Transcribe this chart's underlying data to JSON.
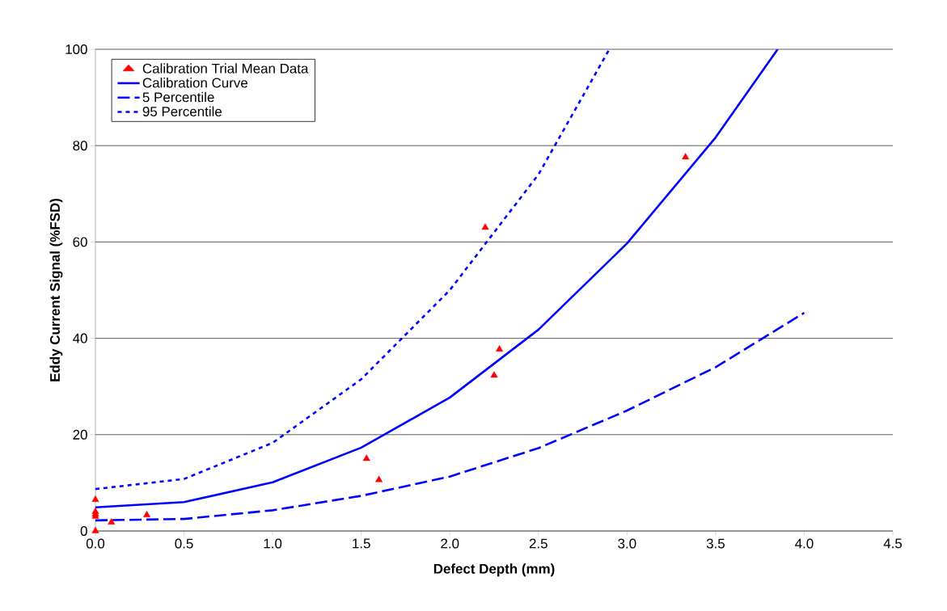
{
  "chart_data": {
    "type": "line",
    "xlabel": "Defect Depth (mm)",
    "ylabel": "Eddy Current Signal (%FSD)",
    "xlim": [
      0,
      4.5
    ],
    "ylim": [
      0,
      100
    ],
    "xticks": [
      {
        "value": 0,
        "label": "0.0"
      },
      {
        "value": 0.5,
        "label": "0.5"
      },
      {
        "value": 1,
        "label": "1.0"
      },
      {
        "value": 1.5,
        "label": "1.5"
      },
      {
        "value": 2,
        "label": "2.0"
      },
      {
        "value": 2.5,
        "label": "2.5"
      },
      {
        "value": 3,
        "label": "3.0"
      },
      {
        "value": 3.5,
        "label": "3.5"
      },
      {
        "value": 4,
        "label": "4.0"
      },
      {
        "value": 4.5,
        "label": "4.5"
      }
    ],
    "yticks": [
      0,
      20,
      40,
      60,
      80,
      100
    ],
    "grid": "y",
    "legend": "top left",
    "series": [
      {
        "name": "Calibration Trial Mean Data",
        "type": "scatter",
        "marker": "triangle",
        "color": "#ff0000",
        "x": [
          0,
          0,
          0,
          0,
          0,
          0.09,
          0.29,
          1.53,
          1.6,
          2.2,
          2.25,
          2.28,
          3.33
        ],
        "values": [
          0,
          3,
          3.5,
          4,
          6.5,
          1.8,
          3.3,
          15,
          10.6,
          63,
          32.3,
          37.7,
          77.6
        ]
      },
      {
        "name": "Calibration Curve",
        "line_style": "solid",
        "color": "#0000ff",
        "x": [
          0,
          0.5,
          1,
          1.5,
          2,
          2.5,
          3,
          3.5,
          3.85
        ],
        "values": [
          4.9,
          6,
          10.1,
          17.3,
          27.7,
          41.8,
          59.7,
          81.7,
          100
        ]
      },
      {
        "name": "5 Percentile",
        "line_style": "dashed",
        "color": "#0000ff",
        "x": [
          0,
          0.5,
          1,
          1.5,
          2,
          2.5,
          3,
          3.5,
          4
        ],
        "values": [
          2.2,
          2.5,
          4.3,
          7.3,
          11.3,
          17.2,
          25,
          34,
          45.3
        ]
      },
      {
        "name": "95 Percentile",
        "line_style": "dotted",
        "color": "#0000ff",
        "x": [
          0,
          0.5,
          1,
          1.5,
          2,
          2.5,
          2.9
        ],
        "values": [
          8.7,
          10.8,
          18.3,
          31.5,
          50,
          74,
          100
        ]
      }
    ]
  }
}
